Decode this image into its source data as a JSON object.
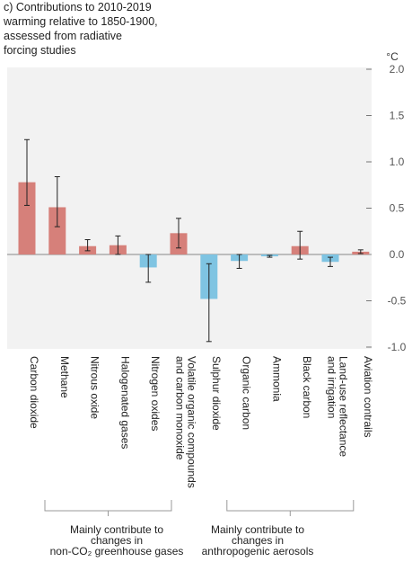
{
  "chart_data": {
    "type": "bar",
    "title_lines": [
      "c) Contributions to 2010-2019",
      "warming relative to 1850-1900,",
      "assessed from radiative",
      "forcing studies"
    ],
    "unit": "°C",
    "ylim": [
      -1.0,
      2.0
    ],
    "yticks": [
      2.0,
      1.5,
      1.0,
      0.5,
      0.0,
      -0.5,
      -1.0
    ],
    "ytick_labels": [
      "2.0",
      "1.5",
      "1.0",
      "0.5",
      "0.0",
      "-0.5",
      "-1.0"
    ],
    "categories": [
      [
        "Carbon dioxide"
      ],
      [
        "Methane"
      ],
      [
        "Nitrous oxide"
      ],
      [
        "Halogenated gases"
      ],
      [
        "Nitrogen oxides"
      ],
      [
        "Volatile organic compounds",
        "and carbon monoxide"
      ],
      [
        "Sulphur dioxide"
      ],
      [
        "Organic carbon"
      ],
      [
        "Ammonia"
      ],
      [
        "Black carbon"
      ],
      [
        "Land-use reflectance",
        "and irrigation"
      ],
      [
        "Aviation contrails"
      ]
    ],
    "values": [
      0.78,
      0.51,
      0.09,
      0.1,
      -0.14,
      0.23,
      -0.48,
      -0.07,
      -0.02,
      0.09,
      -0.08,
      0.03
    ],
    "error_low": [
      0.53,
      0.3,
      0.04,
      0.0,
      -0.3,
      0.07,
      -0.94,
      -0.15,
      -0.03,
      -0.05,
      -0.13,
      0.01
    ],
    "error_high": [
      1.24,
      0.84,
      0.16,
      0.2,
      0.0,
      0.39,
      -0.1,
      0.0,
      -0.01,
      0.25,
      -0.03,
      0.05
    ],
    "groups": [
      {
        "label_lines": [
          "Mainly contribute to",
          "changes in",
          "non-CO₂ greenhouse gases"
        ],
        "from": 0,
        "to": 5
      },
      {
        "label_lines": [
          "Mainly contribute to",
          "changes in",
          "anthropogenic aerosols"
        ],
        "from": 6,
        "to": 11
      }
    ],
    "grid": false,
    "colors": {
      "positive": "#d6807a",
      "negative": "#7fc4e2",
      "panel": "#f2f2f2",
      "zero_line": "#888888",
      "error": "#222222",
      "bracket": "#999999"
    }
  }
}
